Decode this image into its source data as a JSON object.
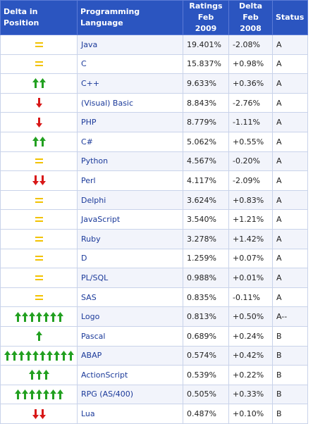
{
  "header": {
    "delta_position": "Delta in Position",
    "language": "Programming Language",
    "ratings_line1": "Ratings",
    "ratings_line2": "Feb 2009",
    "delta_line1": "Delta",
    "delta_line2": "Feb 2008",
    "status": "Status"
  },
  "colors": {
    "up_arrow": "#22a020",
    "down_arrow": "#d81818",
    "equal": "#f2c200",
    "header_bg": "#2b55c0"
  },
  "rows": [
    {
      "change": "equal",
      "arrows": 1,
      "language": "Java",
      "rating": "19.401%",
      "delta": "-2.08%",
      "status": "A"
    },
    {
      "change": "equal",
      "arrows": 1,
      "language": "C",
      "rating": "15.837%",
      "delta": "+0.98%",
      "status": "A"
    },
    {
      "change": "up",
      "arrows": 2,
      "language": "C++",
      "rating": "9.633%",
      "delta": "+0.36%",
      "status": "A"
    },
    {
      "change": "down",
      "arrows": 1,
      "language": "(Visual) Basic",
      "rating": "8.843%",
      "delta": "-2.76%",
      "status": "A"
    },
    {
      "change": "down",
      "arrows": 1,
      "language": "PHP",
      "rating": "8.779%",
      "delta": "-1.11%",
      "status": "A"
    },
    {
      "change": "up",
      "arrows": 2,
      "language": "C#",
      "rating": "5.062%",
      "delta": "+0.55%",
      "status": "A"
    },
    {
      "change": "equal",
      "arrows": 1,
      "language": "Python",
      "rating": "4.567%",
      "delta": "-0.20%",
      "status": "A"
    },
    {
      "change": "down",
      "arrows": 2,
      "language": "Perl",
      "rating": "4.117%",
      "delta": "-2.09%",
      "status": "A"
    },
    {
      "change": "equal",
      "arrows": 1,
      "language": "Delphi",
      "rating": "3.624%",
      "delta": "+0.83%",
      "status": "A"
    },
    {
      "change": "equal",
      "arrows": 1,
      "language": "JavaScript",
      "rating": "3.540%",
      "delta": "+1.21%",
      "status": "A"
    },
    {
      "change": "equal",
      "arrows": 1,
      "language": "Ruby",
      "rating": "3.278%",
      "delta": "+1.42%",
      "status": "A"
    },
    {
      "change": "equal",
      "arrows": 1,
      "language": "D",
      "rating": "1.259%",
      "delta": "+0.07%",
      "status": "A"
    },
    {
      "change": "equal",
      "arrows": 1,
      "language": "PL/SQL",
      "rating": "0.988%",
      "delta": "+0.01%",
      "status": "A"
    },
    {
      "change": "equal",
      "arrows": 1,
      "language": "SAS",
      "rating": "0.835%",
      "delta": "-0.11%",
      "status": "A"
    },
    {
      "change": "up",
      "arrows": 7,
      "language": "Logo",
      "rating": "0.813%",
      "delta": "+0.50%",
      "status": "A--"
    },
    {
      "change": "up",
      "arrows": 1,
      "language": "Pascal",
      "rating": "0.689%",
      "delta": "+0.24%",
      "status": "B"
    },
    {
      "change": "up",
      "arrows": 10,
      "language": "ABAP",
      "rating": "0.574%",
      "delta": "+0.42%",
      "status": "B"
    },
    {
      "change": "up",
      "arrows": 3,
      "language": "ActionScript",
      "rating": "0.539%",
      "delta": "+0.22%",
      "status": "B"
    },
    {
      "change": "up",
      "arrows": 7,
      "language": "RPG (AS/400)",
      "rating": "0.505%",
      "delta": "+0.33%",
      "status": "B"
    },
    {
      "change": "down",
      "arrows": 2,
      "language": "Lua",
      "rating": "0.487%",
      "delta": "+0.10%",
      "status": "B"
    }
  ]
}
